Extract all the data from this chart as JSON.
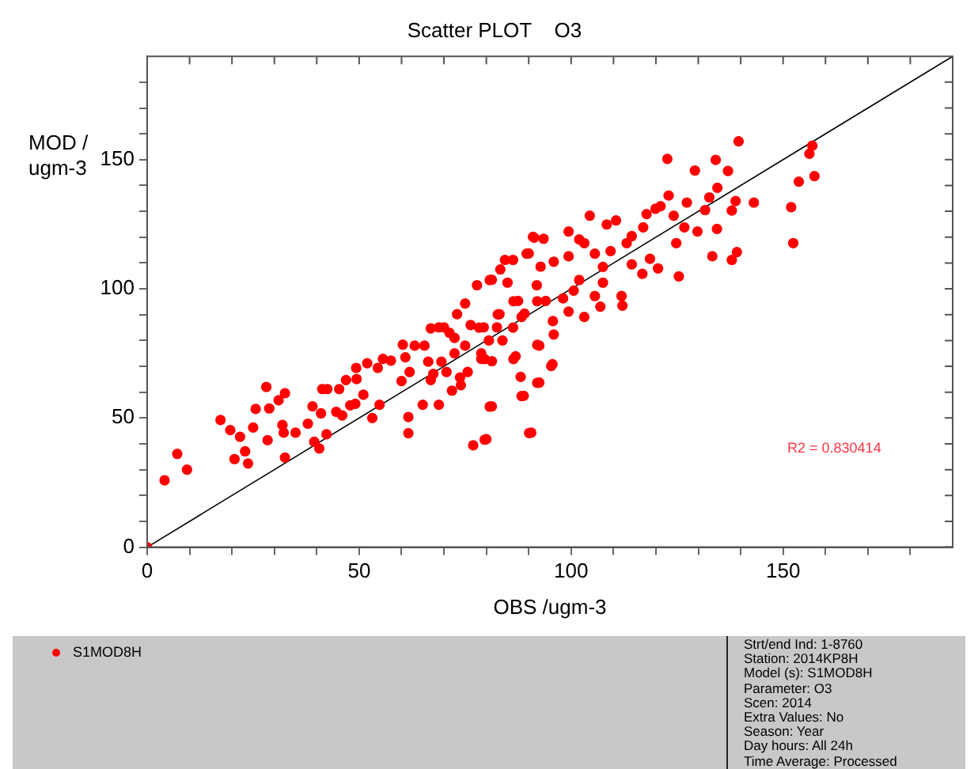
{
  "chart_data": {
    "type": "scatter",
    "title": "Scatter PLOT    O3",
    "xlabel": "OBS /ugm-3",
    "ylabel": "MOD / ugm-3",
    "xlim": [
      0,
      190
    ],
    "ylim": [
      0,
      190
    ],
    "xticks": [
      0,
      {
        "value": 10,
        "label": null
      },
      {
        "value": 20,
        "label": null
      },
      {
        "value": 30,
        "label": null
      },
      {
        "value": 40,
        "label": null
      },
      50,
      {
        "value": 60,
        "label": null
      },
      {
        "value": 70,
        "label": null
      },
      {
        "value": 80,
        "label": null
      },
      {
        "value": 90,
        "label": null
      },
      100,
      {
        "value": 110,
        "label": null
      },
      {
        "value": 120,
        "label": null
      },
      {
        "value": 130,
        "label": null
      },
      {
        "value": 140,
        "label": null
      },
      150,
      {
        "value": 160,
        "label": null
      },
      {
        "value": 170,
        "label": null
      },
      {
        "value": 180,
        "label": null
      }
    ],
    "yticks": [
      0,
      {
        "value": 10,
        "label": null
      },
      {
        "value": 20,
        "label": null
      },
      {
        "value": 30,
        "label": null
      },
      {
        "value": 40,
        "label": null
      },
      50,
      {
        "value": 60,
        "label": null
      },
      {
        "value": 70,
        "label": null
      },
      {
        "value": 80,
        "label": null
      },
      {
        "value": 90,
        "label": null
      },
      100,
      {
        "value": 110,
        "label": null
      },
      {
        "value": 120,
        "label": null
      },
      {
        "value": 130,
        "label": null
      },
      {
        "value": 140,
        "label": null
      },
      150,
      {
        "value": 160,
        "label": null
      },
      {
        "value": 170,
        "label": null
      },
      {
        "value": 180,
        "label": null
      }
    ],
    "grid": false,
    "legend": "bottom",
    "marker": "circle",
    "series": [
      {
        "name": "S1MOD8H",
        "color": "#ff0000",
        "x": [
          0,
          4.1,
          7.1,
          9.4,
          17.3,
          19.6,
          20.6,
          21.9,
          23.1,
          23.8,
          25,
          25.6,
          28.1,
          28.4,
          28.8,
          31,
          31.9,
          32.5,
          32.5,
          32.2,
          35,
          37.9,
          39,
          39.4,
          40.6,
          41,
          41.3,
          42.3,
          42.5,
          44.6,
          45.3,
          46,
          46.9,
          47.9,
          49.1,
          49.4,
          49.3,
          51,
          51.9,
          53.1,
          54.4,
          54.8,
          55.6,
          57.5,
          60,
          60.3,
          60.9,
          61.6,
          61.6,
          61.9,
          63.1,
          65,
          65.4,
          66.3,
          66.9,
          66.9,
          67.5,
          68.8,
          69.4,
          70,
          70.6,
          71.9,
          72.5,
          73.1,
          73.8,
          74,
          75,
          75.6,
          76.9,
          77.8,
          78.8,
          79.4,
          80,
          80.6,
          81.3,
          81.3,
          82.5,
          83.1,
          84.4,
          85,
          86.3,
          86.9,
          87.5,
          88.1,
          88.8,
          89,
          90,
          90.6,
          91.3,
          91.9,
          92.5,
          92.5,
          92.8,
          93.5,
          94,
          95.6,
          68.8,
          71.3,
          76.3,
          78.8,
          72.5,
          75,
          81.3,
          83.8,
          86.3,
          80.8,
          83.3,
          89.5,
          91,
          95.9,
          99.4,
          99.4,
          101.9,
          103.1,
          104.4,
          108.4,
          110.6,
          105.6,
          109.3,
          107.5,
          113.1,
          114.3,
          117,
          117.8,
          119.9,
          121.1,
          122.7,
          123,
          124.2,
          124.8,
          125.4,
          126.7,
          127.3,
          129.2,
          129.8,
          131.6,
          132.6,
          133.3,
          134.1,
          134.4,
          134.5,
          137,
          137.9,
          137.9,
          138.8,
          139.1,
          139.5,
          143.1,
          151.9,
          152.4,
          153.7,
          156.2,
          156.9,
          157.4,
          78.3,
          79.6,
          80.8,
          82.7,
          86.4,
          86.4,
          88.3,
          88.3,
          92,
          92,
          92,
          90.1,
          95.7,
          95.3,
          95.9,
          98.1,
          99.4,
          100.6,
          101.9,
          103.1,
          105.6,
          106.9,
          107.5,
          111.9,
          112.1,
          114.3,
          116.8,
          118.6,
          120.5,
          79.6
        ],
        "values": [
          0,
          25.9,
          36.1,
          30,
          49.2,
          45.3,
          34.1,
          42.7,
          37.1,
          32.4,
          46.3,
          53.5,
          62,
          41.4,
          53.7,
          56.9,
          47.3,
          59.6,
          34.7,
          44.3,
          44.3,
          47.8,
          54.5,
          40.8,
          38.2,
          51.8,
          61.2,
          43.7,
          61.2,
          52.4,
          61.2,
          51,
          64.7,
          54.9,
          55.5,
          65.1,
          69.4,
          59,
          71.2,
          50,
          69.4,
          55.1,
          72.9,
          72.2,
          64.3,
          78.4,
          73.5,
          50.4,
          44.1,
          67.8,
          78,
          55.1,
          78,
          71.8,
          84.7,
          64.7,
          67.1,
          55.1,
          71.8,
          85.1,
          67.8,
          60.6,
          81,
          90.2,
          65.7,
          62.7,
          94.3,
          67.8,
          39.4,
          101.4,
          72.9,
          85.1,
          41.8,
          80,
          103.5,
          54.5,
          85.1,
          90.2,
          111.2,
          102.4,
          111.2,
          73.9,
          95.3,
          65.9,
          58.6,
          90.4,
          113.7,
          44.3,
          119.8,
          101.4,
          78,
          63.7,
          108.6,
          119.4,
          95.3,
          70.8,
          85.1,
          83,
          86,
          75,
          75,
          78,
          72,
          80,
          85,
          103.4,
          107.5,
          113.6,
          120.1,
          110.5,
          122.2,
          112.6,
          119.1,
          117.7,
          128.3,
          124.9,
          126.5,
          113.6,
          114.6,
          108.5,
          117.7,
          120.4,
          123.8,
          128.9,
          131,
          132,
          150.3,
          136.1,
          128.3,
          117.7,
          104.8,
          123.8,
          133.4,
          145.8,
          122.2,
          130.5,
          135.4,
          112.6,
          149.9,
          123.2,
          139.1,
          145.6,
          130.3,
          111.2,
          134,
          114.2,
          157.1,
          133.4,
          131.6,
          117.7,
          141.5,
          152.3,
          155.4,
          143.6,
          85,
          72.8,
          54.4,
          90.1,
          95.2,
          72.8,
          89.1,
          58.5,
          95.2,
          78.3,
          63.6,
          44.2,
          87.5,
          70.1,
          82.3,
          96.3,
          91.2,
          99.3,
          103.4,
          89.1,
          97.2,
          93.1,
          102.4,
          97.2,
          93.5,
          109.5,
          105.8,
          111.6,
          107.9,
          41.6
        ]
      },
      {
        "type": "line",
        "color": "#000000",
        "marker": "none",
        "x": [
          0,
          190
        ],
        "values": [
          0,
          190
        ]
      }
    ],
    "annotations": [
      "R2 = 0.830414",
      "Strt/end Ind: 1-8760",
      "Station: 2014KP8H",
      "Model (s): S1MOD8H",
      "Parameter: O3",
      "Scen: 2014",
      "Extra Values: No",
      "Season: Year",
      "Day hours: All 24h",
      "Time Average: Processed"
    ]
  }
}
